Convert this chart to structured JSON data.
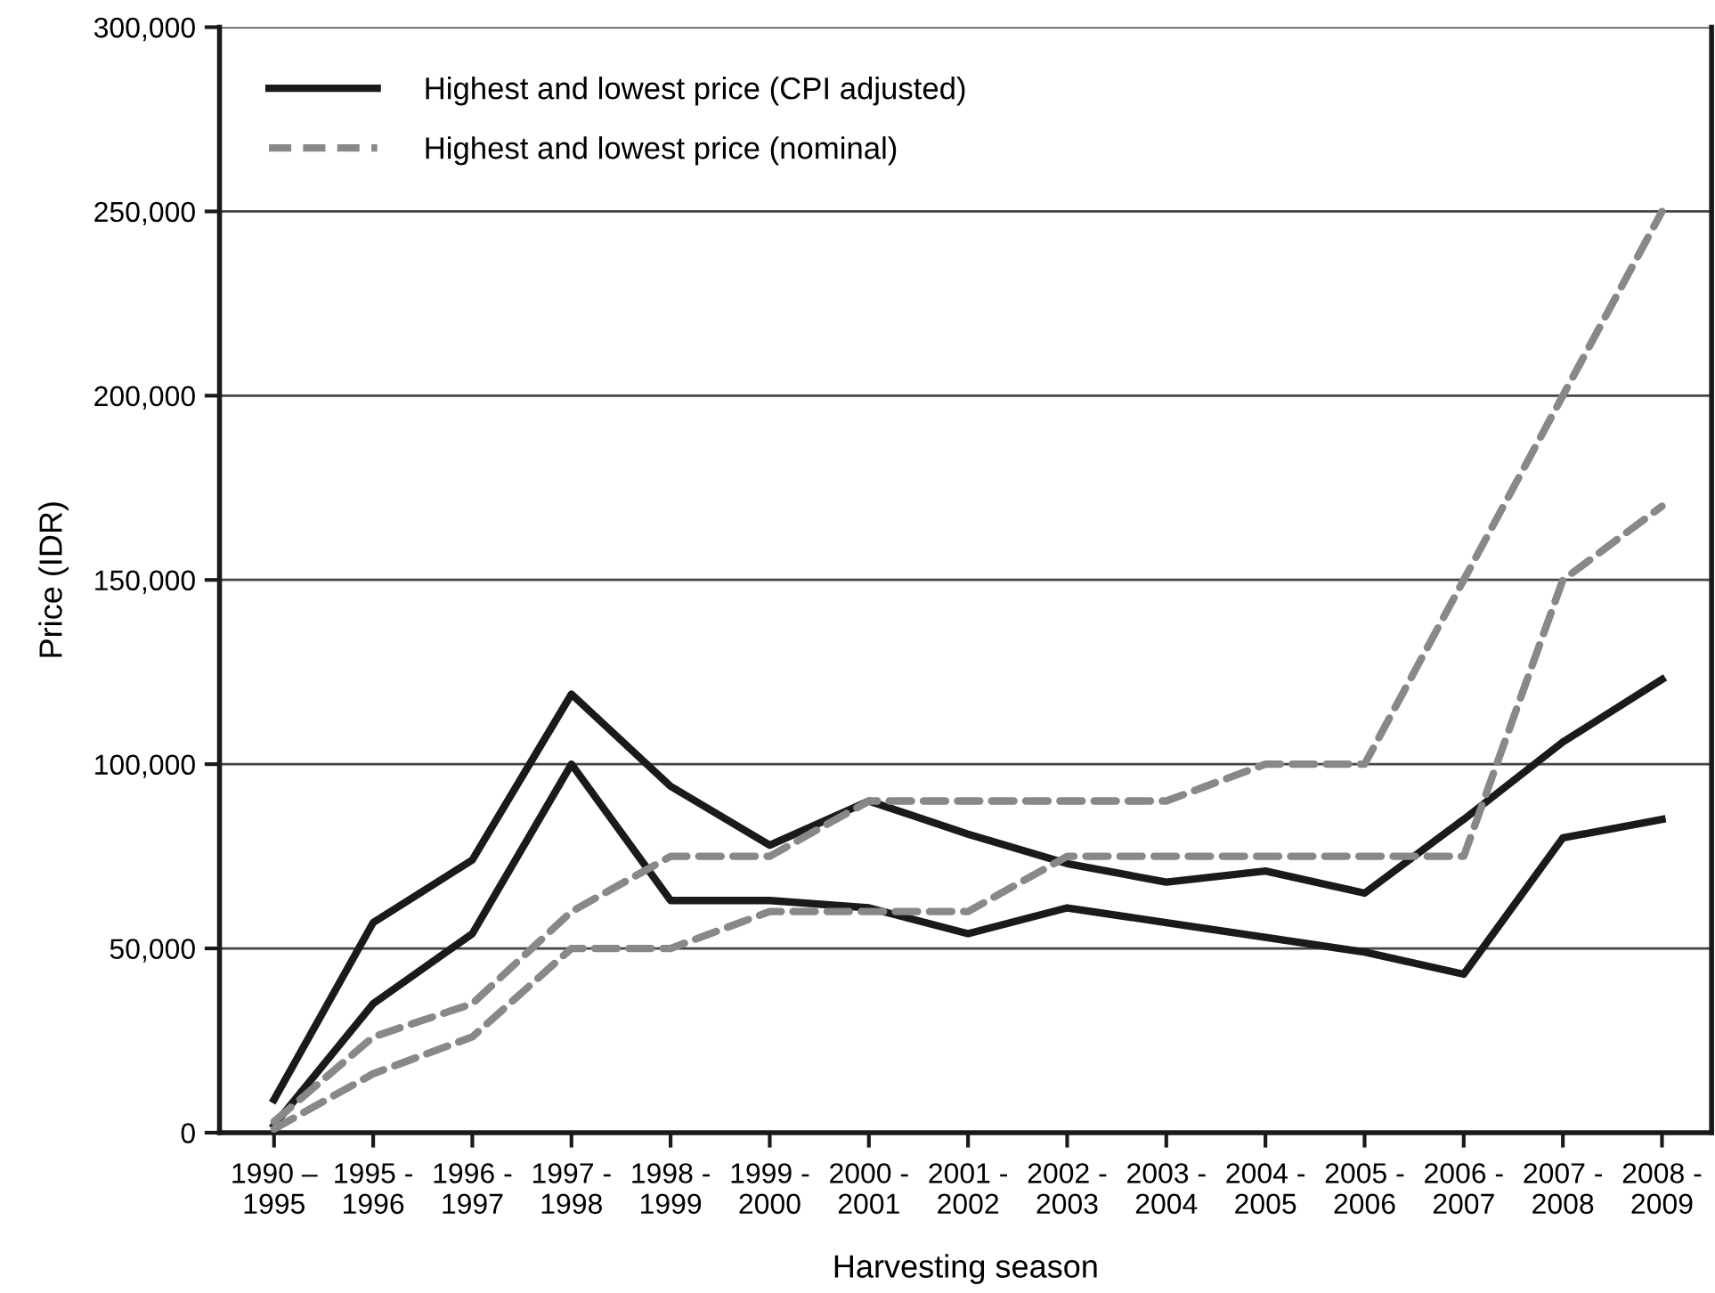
{
  "chart_data": {
    "type": "line",
    "xlabel": "Harvesting season",
    "ylabel": "Price (IDR)",
    "categories": [
      "1990 –\n1995",
      "1995 -\n1996",
      "1996 -\n1997",
      "1997 -\n1998",
      "1998 -\n1999",
      "1999 -\n2000",
      "2000 -\n2001",
      "2001 -\n2002",
      "2002 -\n2003",
      "2003 -\n2004",
      "2004 -\n2005",
      "2005 -\n2006",
      "2006 -\n2007",
      "2007 -\n2008",
      "2008 -\n2009"
    ],
    "series": [
      {
        "name": "Highest and lowest price (CPI adjusted)",
        "color": "#1a1a1a",
        "line_style": "solid",
        "values": [
          9000,
          57000,
          74000,
          119000,
          94000,
          78000,
          90000,
          81000,
          73000,
          68000,
          71000,
          65000,
          85000,
          106000,
          123000
        ]
      },
      {
        "color": "#1a1a1a",
        "line_style": "solid",
        "values": [
          2000,
          35000,
          54000,
          100000,
          63000,
          63000,
          61000,
          54000,
          61000,
          57000,
          53000,
          49000,
          43000,
          80000,
          85000
        ]
      },
      {
        "name": "Highest and lowest price (nominal)",
        "color": "#888888",
        "line_style": "dashed",
        "values": [
          3000,
          26000,
          35000,
          60000,
          75000,
          75000,
          90000,
          90000,
          90000,
          90000,
          100000,
          100000,
          150000,
          200000,
          250000
        ]
      },
      {
        "color": "#888888",
        "line_style": "dashed",
        "values": [
          1000,
          16000,
          26000,
          50000,
          50000,
          60000,
          60000,
          60000,
          75000,
          75000,
          75000,
          75000,
          75000,
          150000,
          170000
        ]
      }
    ],
    "ylim": [
      0,
      300000
    ],
    "yticks": [
      0,
      {
        "value": 50000,
        "label": "50,000"
      },
      {
        "value": 100000,
        "label": "100,000"
      },
      {
        "value": 150000,
        "label": "150,000"
      },
      {
        "value": 200000,
        "label": "200,000"
      },
      {
        "value": 250000,
        "label": "250,000"
      },
      {
        "value": 300000,
        "label": "300,000"
      }
    ],
    "grid": "y",
    "legend": "top left",
    "marker": "none"
  }
}
